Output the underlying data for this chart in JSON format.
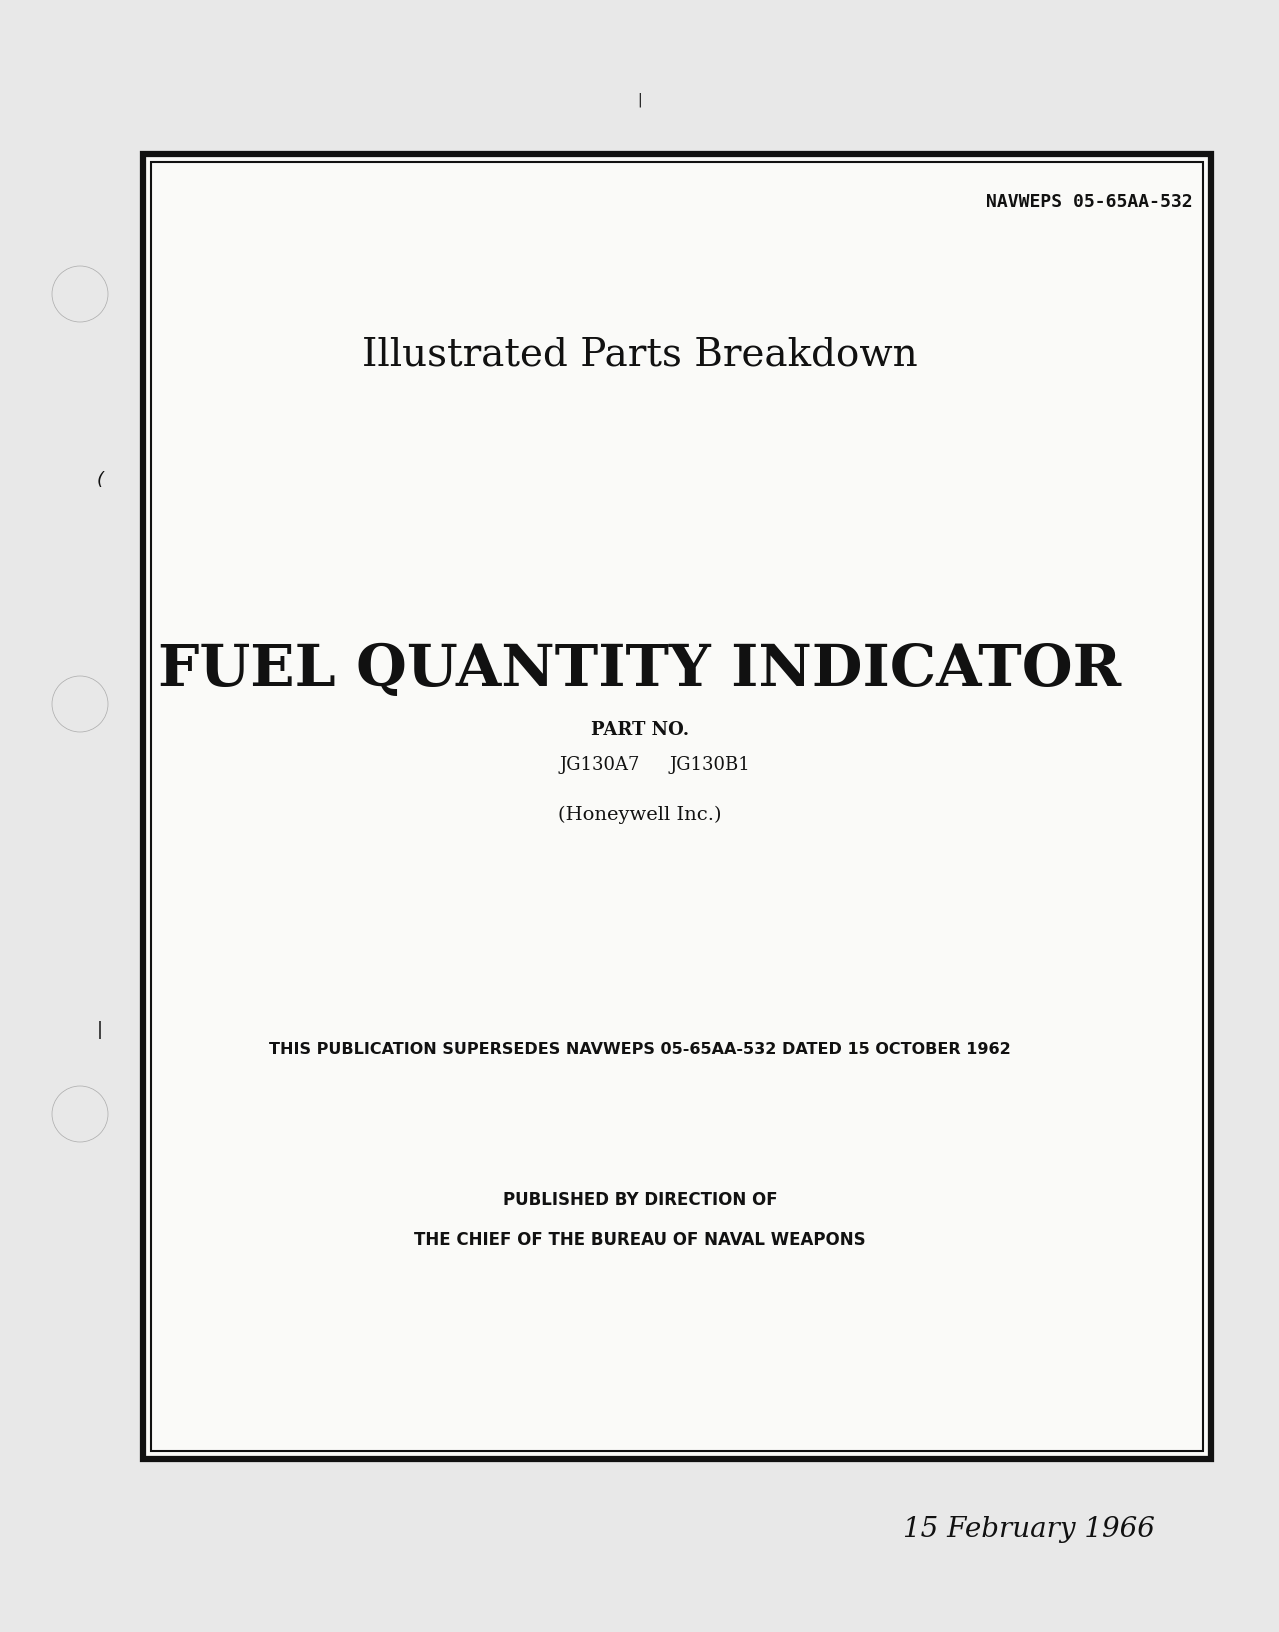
{
  "bg_color": "#e8e8e8",
  "page_bg": "#f5f5f0",
  "inner_bg": "#fafaf8",
  "border_color": "#111111",
  "text_color": "#111111",
  "header_ref": "NAVWEPS 05-65AA-532",
  "title1": "Illustrated Parts Breakdown",
  "main_title": "FUEL QUANTITY INDICATOR",
  "part_no_label": "PART NO.",
  "part_no_1": "JG130A7",
  "part_no_2": "JG130B1",
  "manufacturer": "(Honeywell Inc.)",
  "supersedes_text": "THIS PUBLICATION SUPERSEDES NAVWEPS 05-65AA-532 DATED 15 OCTOBER 1962",
  "published_line1": "PUBLISHED BY DIRECTION OF",
  "published_line2": "THE CHIEF OF THE BUREAU OF NAVAL WEAPONS",
  "date_text": "15 February 1966",
  "small_mark_top": "|",
  "small_mark_left1": "(",
  "small_mark_left2": "|"
}
